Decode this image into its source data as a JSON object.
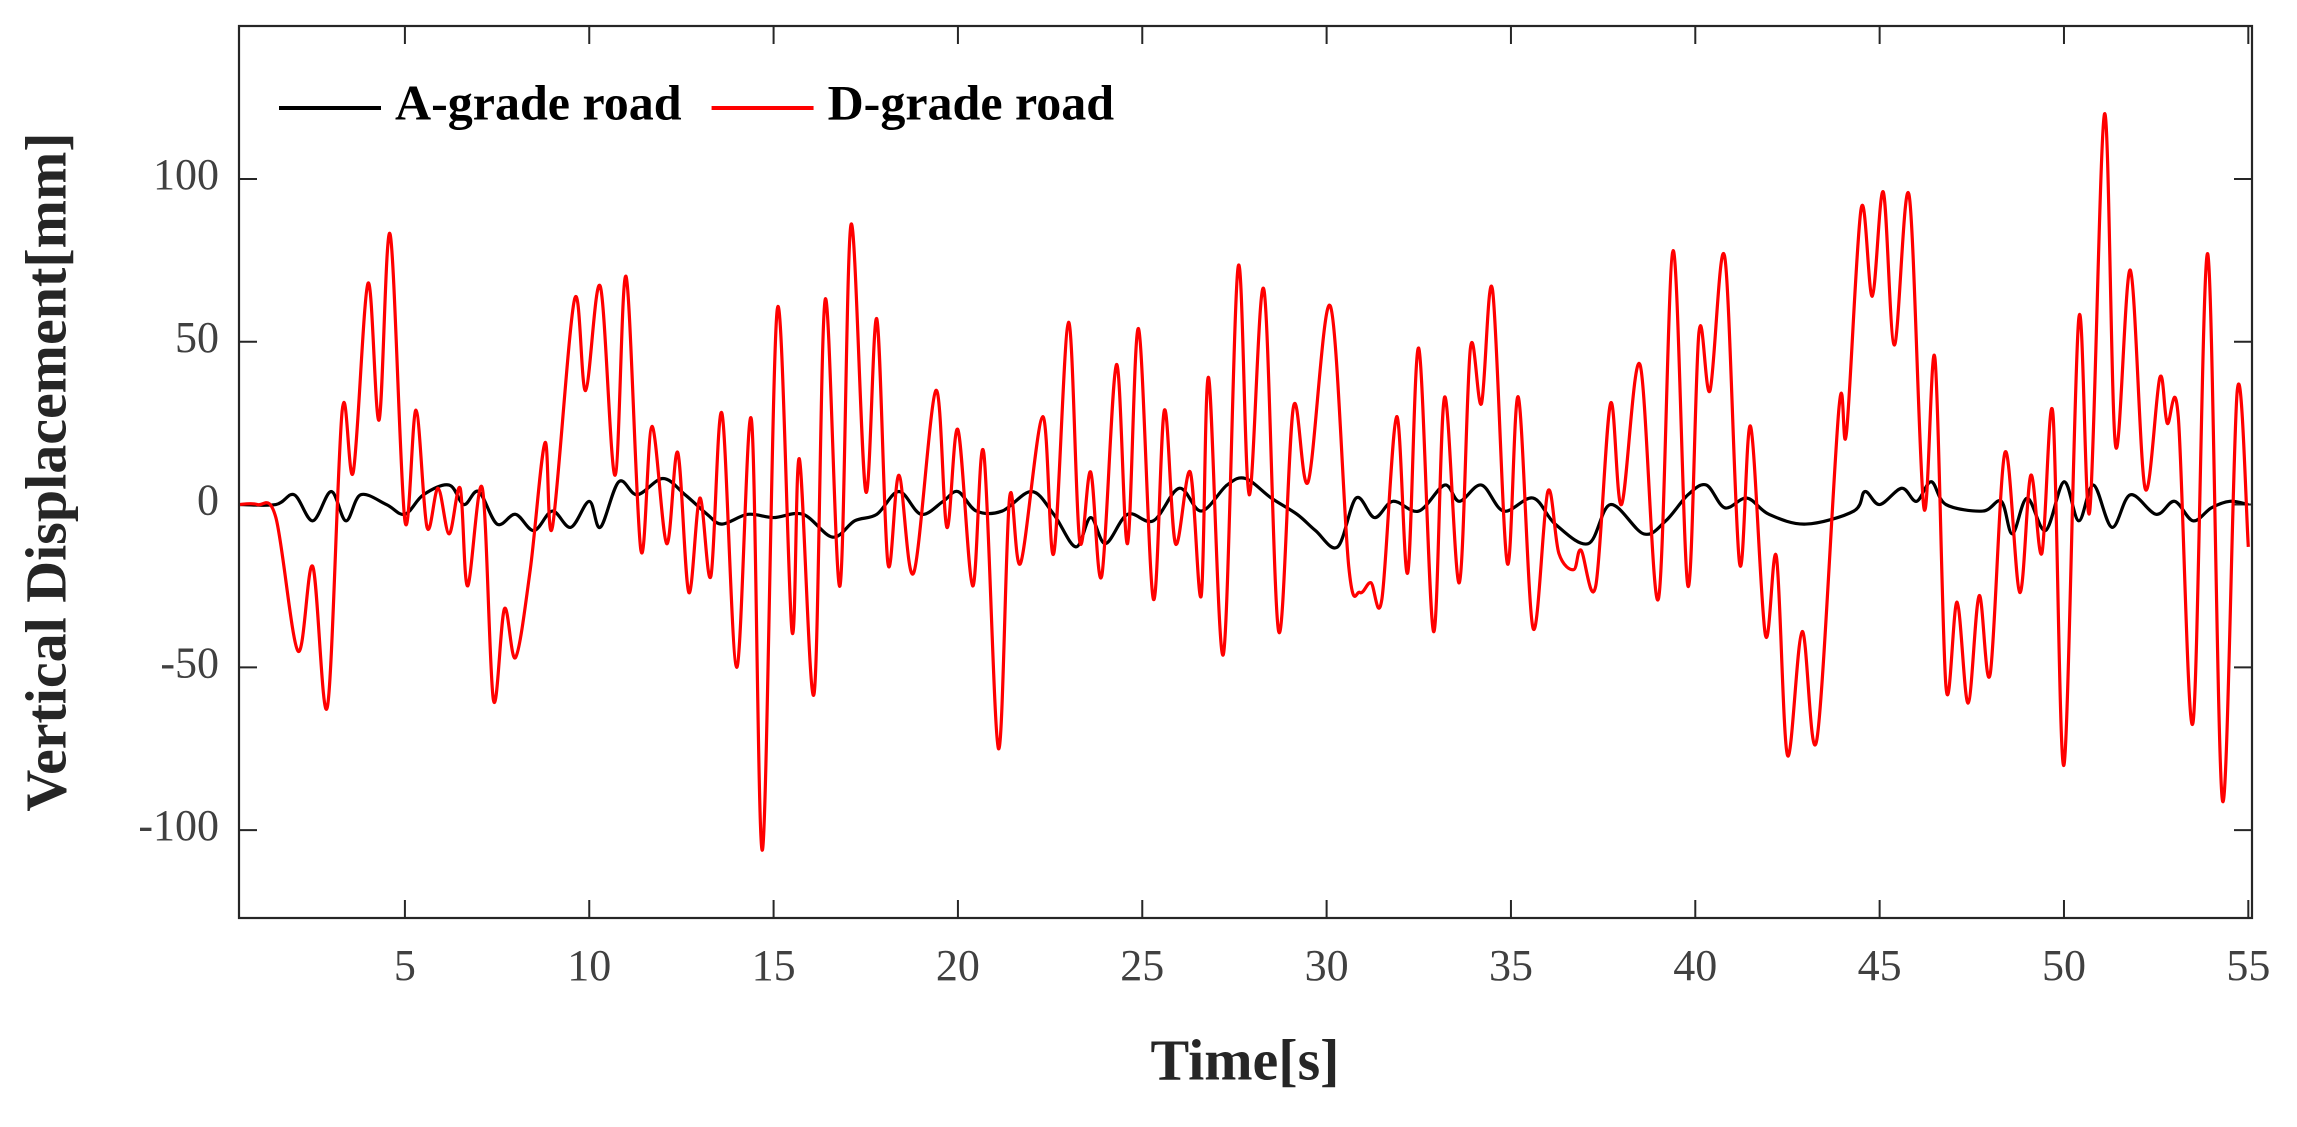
{
  "chart_data": {
    "type": "line",
    "xlabel": "Time[s]",
    "ylabel": "Vertical Displacement[mm]",
    "xlim": [
      0.5,
      55.1
    ],
    "ylim": [
      -127,
      147
    ],
    "xticks": [
      5,
      10,
      15,
      20,
      25,
      30,
      35,
      40,
      45,
      50,
      55
    ],
    "yticks": [
      -100,
      -50,
      0,
      50,
      100
    ],
    "grid": false,
    "legend": "upper left",
    "series": [
      {
        "name": "A-grade road",
        "color": "#000000",
        "x": [
          0.5,
          1.5,
          2.0,
          2.5,
          3.0,
          3.4,
          3.8,
          4.5,
          5.0,
          5.5,
          6.2,
          6.6,
          7.0,
          7.5,
          8.0,
          8.5,
          9.0,
          9.5,
          10.0,
          10.3,
          10.8,
          11.3,
          12.0,
          12.6,
          13.2,
          13.6,
          14.3,
          15.0,
          15.8,
          16.6,
          17.2,
          17.8,
          18.4,
          19.0,
          19.6,
          20.0,
          20.5,
          21.2,
          22.0,
          22.6,
          23.2,
          23.6,
          24.0,
          24.6,
          25.3,
          26.0,
          26.6,
          27.3,
          27.8,
          28.5,
          29.2,
          29.7,
          30.3,
          30.8,
          31.3,
          31.8,
          32.5,
          33.2,
          33.6,
          34.2,
          34.8,
          35.6,
          36.2,
          37.1,
          37.7,
          38.6,
          39.2,
          39.8,
          40.3,
          40.8,
          41.4,
          42.0,
          43.0,
          44.3,
          44.6,
          45.0,
          45.6,
          46.0,
          46.4,
          46.8,
          47.8,
          48.3,
          48.6,
          49.0,
          49.5,
          50.0,
          50.4,
          50.8,
          51.3,
          51.8,
          52.5,
          53.0,
          53.5,
          54.0,
          54.5,
          55.0
        ],
        "values": [
          0,
          0,
          3,
          -5,
          4,
          -5,
          3,
          0,
          -3,
          3,
          6,
          0,
          4,
          -6,
          -3,
          -8,
          -2,
          -7,
          1,
          -7,
          7,
          3,
          8,
          3,
          -3,
          -6,
          -3,
          -4,
          -3,
          -10,
          -5,
          -3,
          4,
          -3,
          1,
          4,
          -2,
          -2,
          4,
          -3,
          -13,
          -4,
          -12,
          -3,
          -5,
          5,
          -2,
          6,
          8,
          2,
          -3,
          -8,
          -13,
          2,
          -4,
          1,
          -2,
          6,
          1,
          6,
          -2,
          2,
          -6,
          -12,
          0,
          -9,
          -5,
          3,
          6,
          -1,
          2,
          -3,
          -6,
          -2,
          4,
          0,
          5,
          1,
          7,
          0,
          -2,
          1,
          -9,
          2,
          -8,
          7,
          -5,
          6,
          -7,
          3,
          -3,
          1,
          -5,
          -1,
          1,
          0
        ]
      },
      {
        "name": "D-grade road",
        "color": "#ff0000",
        "x": [
          0.5,
          1.0,
          1.5,
          2.1,
          2.5,
          2.9,
          3.3,
          3.6,
          4.0,
          4.3,
          4.6,
          5.0,
          5.3,
          5.6,
          5.9,
          6.2,
          6.5,
          6.7,
          7.1,
          7.4,
          7.7,
          8.0,
          8.4,
          8.8,
          9.0,
          9.6,
          9.9,
          10.3,
          10.7,
          11.0,
          11.4,
          11.7,
          12.1,
          12.4,
          12.7,
          13.0,
          13.3,
          13.6,
          14.0,
          14.4,
          14.7,
          15.1,
          15.5,
          15.7,
          16.1,
          16.4,
          16.8,
          17.1,
          17.5,
          17.8,
          18.1,
          18.4,
          18.8,
          19.4,
          19.7,
          20.0,
          20.4,
          20.7,
          21.1,
          21.4,
          21.7,
          22.3,
          22.6,
          23.0,
          23.3,
          23.6,
          23.9,
          24.3,
          24.6,
          24.9,
          25.3,
          25.6,
          25.9,
          26.3,
          26.6,
          26.8,
          27.2,
          27.6,
          27.9,
          28.3,
          28.7,
          29.1,
          29.5,
          30.1,
          30.6,
          30.9,
          31.2,
          31.5,
          31.9,
          32.2,
          32.5,
          32.9,
          33.2,
          33.6,
          33.9,
          34.2,
          34.5,
          34.9,
          35.2,
          35.6,
          36.0,
          36.3,
          36.7,
          36.9,
          37.3,
          37.7,
          38.0,
          38.5,
          39.0,
          39.4,
          39.8,
          40.1,
          40.4,
          40.8,
          41.2,
          41.5,
          41.9,
          42.2,
          42.5,
          42.9,
          43.3,
          43.9,
          44.1,
          44.5,
          44.8,
          45.1,
          45.4,
          45.8,
          46.2,
          46.5,
          46.8,
          47.1,
          47.4,
          47.7,
          48.0,
          48.4,
          48.8,
          49.1,
          49.4,
          49.7,
          50.0,
          50.4,
          50.7,
          51.1,
          51.4,
          51.8,
          52.2,
          52.6,
          52.8,
          53.1,
          53.5,
          53.9,
          54.3,
          54.7,
          55.0
        ],
        "values": [
          0,
          0,
          -4,
          -45,
          -19,
          -62,
          29,
          10,
          68,
          26,
          83,
          -5,
          29,
          -7,
          5,
          -9,
          5,
          -25,
          5,
          -60,
          -32,
          -47,
          -20,
          19,
          -7,
          63,
          35,
          67,
          9,
          70,
          -14,
          24,
          -12,
          16,
          -27,
          2,
          -22,
          28,
          -50,
          26,
          -106,
          60,
          -39,
          14,
          -58,
          63,
          -25,
          86,
          4,
          57,
          -18,
          9,
          -21,
          35,
          -7,
          23,
          -25,
          16,
          -75,
          2,
          -18,
          27,
          -15,
          56,
          -11,
          10,
          -22,
          43,
          -12,
          54,
          -29,
          29,
          -12,
          10,
          -28,
          39,
          -46,
          73,
          3,
          66,
          -39,
          30,
          7,
          61,
          -19,
          -27,
          -24,
          -29,
          27,
          -21,
          48,
          -39,
          33,
          -24,
          48,
          31,
          66,
          -18,
          33,
          -38,
          4,
          -15,
          -20,
          -14,
          -25,
          31,
          0,
          43,
          -29,
          78,
          -25,
          53,
          35,
          76,
          -18,
          24,
          -40,
          -16,
          -77,
          -39,
          -72,
          30,
          22,
          91,
          64,
          96,
          49,
          95,
          -1,
          45,
          -56,
          -30,
          -61,
          -28,
          -52,
          16,
          -27,
          9,
          -15,
          28,
          -80,
          57,
          -2,
          120,
          18,
          72,
          5,
          39,
          25,
          27,
          -67,
          77,
          -91,
          35,
          -13
        ]
      }
    ]
  }
}
